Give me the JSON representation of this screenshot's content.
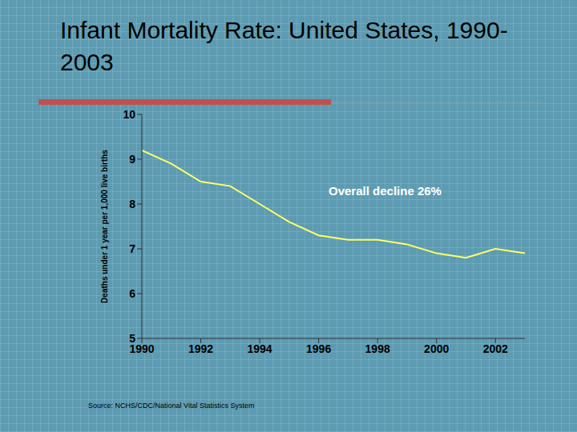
{
  "chart_data": {
    "type": "line",
    "title": "Infant Mortality Rate: United States, 1990-2003",
    "y_label": "Deaths under 1 year per 1,000 live births",
    "annotation": "Overall decline 26%",
    "source": "Source: NCHS/CDC/National Vital Statistics System",
    "x": [
      1990,
      1991,
      1992,
      1993,
      1994,
      1995,
      1996,
      1997,
      1998,
      1999,
      2000,
      2001,
      2002,
      2003
    ],
    "values": [
      9.2,
      8.9,
      8.5,
      8.4,
      8.0,
      7.6,
      7.3,
      7.2,
      7.2,
      7.1,
      6.9,
      6.8,
      7.0,
      6.9
    ],
    "color": "#ffff66",
    "xlim": [
      1990,
      2003
    ],
    "xticks": [
      1990,
      1992,
      1994,
      1996,
      1998,
      2000,
      2002
    ],
    "ylim": [
      5,
      10
    ],
    "yticks": [
      5,
      6,
      7,
      8,
      9,
      10
    ],
    "grid": false
  }
}
